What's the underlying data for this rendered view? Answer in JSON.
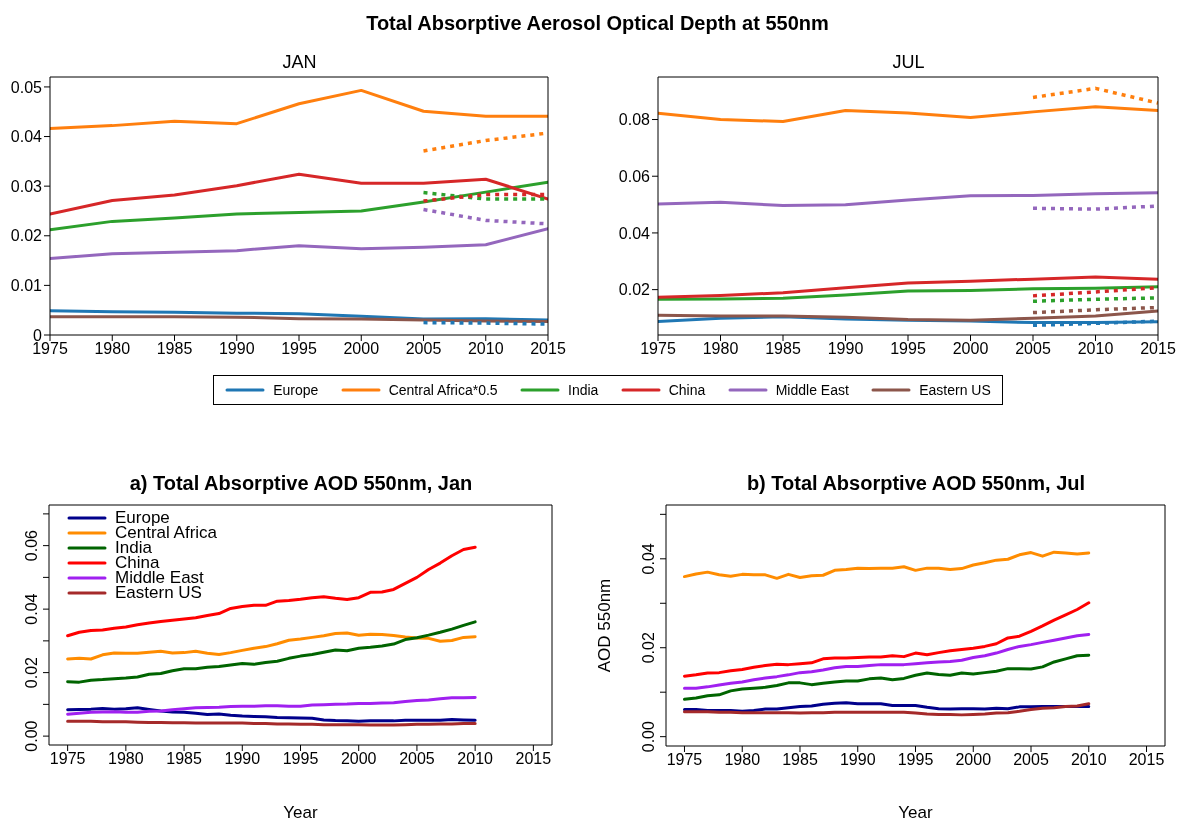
{
  "chart_data": [
    {
      "type": "line",
      "title": "Total Absorptive Aerosol Optical Depth at 550nm",
      "subtitle": "JAN",
      "x": [
        1975,
        1980,
        1985,
        1990,
        1995,
        2000,
        2005,
        2010,
        2015
      ],
      "xlim": [
        1975,
        2015
      ],
      "xticks": [
        1975,
        1980,
        1985,
        1990,
        1995,
        2000,
        2005,
        2010,
        2015
      ],
      "ylim": [
        0,
        0.052
      ],
      "yticks": [
        0,
        0.01,
        0.02,
        0.03,
        0.04,
        0.05
      ],
      "legend": "bottom",
      "series": [
        {
          "name": "Europe",
          "color": "#1f77b4",
          "values": [
            0.0049,
            0.0047,
            0.0046,
            0.0044,
            0.0043,
            0.0038,
            0.0032,
            0.0033,
            0.003
          ]
        },
        {
          "name": "Central Africa*0.5",
          "color": "#ff7f0e",
          "values": [
            0.0416,
            0.0422,
            0.0431,
            0.0426,
            0.0466,
            0.0493,
            0.0451,
            0.0441,
            0.0441
          ]
        },
        {
          "name": "India",
          "color": "#2ca02c",
          "values": [
            0.0212,
            0.0229,
            0.0236,
            0.0244,
            0.0247,
            0.025,
            0.0268,
            0.0288,
            0.0308
          ]
        },
        {
          "name": "China",
          "color": "#d62728",
          "values": [
            0.0244,
            0.0271,
            0.0282,
            0.0301,
            0.0324,
            0.0306,
            0.0306,
            0.0314,
            0.0274
          ]
        },
        {
          "name": "Middle East",
          "color": "#9467bd",
          "values": [
            0.0154,
            0.0164,
            0.0167,
            0.017,
            0.018,
            0.0174,
            0.0177,
            0.0182,
            0.0214
          ]
        },
        {
          "name": "Eastern US",
          "color": "#8c564b",
          "values": [
            0.0037,
            0.0037,
            0.0037,
            0.0036,
            0.0033,
            0.0032,
            0.003,
            0.0028,
            0.0027
          ]
        },
        {
          "color": "#ff7f0e",
          "line_style": "dotted",
          "x": [
            2005,
            2010,
            2015
          ],
          "values": [
            0.0371,
            0.0392,
            0.0407
          ]
        },
        {
          "color": "#2ca02c",
          "line_style": "dotted",
          "x": [
            2005,
            2010,
            2015
          ],
          "values": [
            0.0287,
            0.0274,
            0.0274
          ]
        },
        {
          "color": "#d62728",
          "line_style": "dotted",
          "x": [
            2005,
            2010,
            2015
          ],
          "values": [
            0.027,
            0.0283,
            0.0283
          ]
        },
        {
          "color": "#9467bd",
          "line_style": "dotted",
          "x": [
            2005,
            2010,
            2015
          ],
          "values": [
            0.0253,
            0.0231,
            0.0224
          ]
        },
        {
          "color": "#1f77b4",
          "line_style": "dotted",
          "x": [
            2005,
            2010,
            2015
          ],
          "values": [
            0.0025,
            0.0024,
            0.0022
          ]
        }
      ]
    },
    {
      "type": "line",
      "title": "JUL",
      "x": [
        1975,
        1980,
        1985,
        1990,
        1995,
        2000,
        2005,
        2010,
        2015
      ],
      "xlim": [
        1975,
        2015
      ],
      "xticks": [
        1975,
        1980,
        1985,
        1990,
        1995,
        2000,
        2005,
        2010,
        2015
      ],
      "ylim": [
        0.004,
        0.095
      ],
      "yticks": [
        0.02,
        0.04,
        0.06,
        0.08
      ],
      "series": [
        {
          "color": "#1f77b4",
          "values": [
            0.0088,
            0.0099,
            0.0104,
            0.0096,
            0.0092,
            0.0089,
            0.0084,
            0.0084,
            0.0087
          ]
        },
        {
          "color": "#ff7f0e",
          "values": [
            0.0822,
            0.08,
            0.0793,
            0.0832,
            0.0823,
            0.0807,
            0.0827,
            0.0845,
            0.0832
          ]
        },
        {
          "color": "#2ca02c",
          "values": [
            0.0166,
            0.0167,
            0.017,
            0.0181,
            0.0195,
            0.0197,
            0.0203,
            0.0205,
            0.021
          ]
        },
        {
          "color": "#d62728",
          "values": [
            0.0173,
            0.0179,
            0.0189,
            0.0207,
            0.0223,
            0.023,
            0.0237,
            0.0245,
            0.0237
          ]
        },
        {
          "color": "#9467bd",
          "values": [
            0.0502,
            0.0508,
            0.0497,
            0.0499,
            0.0516,
            0.0531,
            0.0532,
            0.0538,
            0.0542
          ]
        },
        {
          "color": "#8c564b",
          "values": [
            0.011,
            0.0107,
            0.0107,
            0.0103,
            0.0095,
            0.0092,
            0.0099,
            0.0107,
            0.0125
          ]
        },
        {
          "color": "#ff7f0e",
          "line_style": "dotted",
          "x": [
            2005,
            2010,
            2015
          ],
          "values": [
            0.0878,
            0.091,
            0.0858
          ]
        },
        {
          "color": "#9467bd",
          "line_style": "dotted",
          "x": [
            2005,
            2010,
            2015
          ],
          "values": [
            0.0487,
            0.0484,
            0.0495
          ]
        },
        {
          "color": "#d62728",
          "line_style": "dotted",
          "x": [
            2005,
            2010,
            2015
          ],
          "values": [
            0.0178,
            0.0192,
            0.0207
          ]
        },
        {
          "color": "#2ca02c",
          "line_style": "dotted",
          "x": [
            2005,
            2010,
            2015
          ],
          "values": [
            0.0159,
            0.0166,
            0.0171
          ]
        },
        {
          "color": "#8c564b",
          "line_style": "dotted",
          "x": [
            2005,
            2010,
            2015
          ],
          "values": [
            0.0119,
            0.0129,
            0.0137
          ]
        },
        {
          "color": "#1f77b4",
          "line_style": "dotted",
          "x": [
            2005,
            2010,
            2015
          ],
          "values": [
            0.0074,
            0.0081,
            0.0089
          ]
        }
      ]
    },
    {
      "type": "line",
      "title": "a) Total Absorptive AOD 550nm, Jan",
      "xlabel": "Year",
      "x": [
        1975,
        1976,
        1977,
        1978,
        1979,
        1980,
        1981,
        1982,
        1983,
        1984,
        1985,
        1986,
        1987,
        1988,
        1989,
        1990,
        1991,
        1992,
        1993,
        1994,
        1995,
        1996,
        1997,
        1998,
        1999,
        2000,
        2001,
        2002,
        2003,
        2004,
        2005,
        2006,
        2007,
        2008,
        2009,
        2010
      ],
      "xlim": [
        1973.4,
        2016.6
      ],
      "xticks": [
        1975,
        1980,
        1985,
        1990,
        1995,
        2000,
        2005,
        2010,
        2015
      ],
      "ylim": [
        -0.0028,
        0.0728
      ],
      "yticks": [
        {
          "value": 0,
          "label": "0.00"
        },
        {
          "value": 0.01,
          "label": null
        },
        {
          "value": 0.02,
          "label": "0.02"
        },
        {
          "value": 0.03,
          "label": null
        },
        {
          "value": 0.04,
          "label": "0.04"
        },
        {
          "value": 0.05,
          "label": null
        },
        {
          "value": 0.06,
          "label": "0.06"
        },
        {
          "value": 0.07,
          "label": null
        }
      ],
      "legend": "top left",
      "series": [
        {
          "name": "Europe",
          "color": "#00008b",
          "values": [
            0.0083,
            0.0084,
            0.0085,
            0.0087,
            0.0085,
            0.0086,
            0.0089,
            0.0084,
            0.0079,
            0.0076,
            0.0075,
            0.0072,
            0.0068,
            0.007,
            0.0066,
            0.0063,
            0.0062,
            0.0061,
            0.0059,
            0.0058,
            0.0057,
            0.0056,
            0.0051,
            0.0049,
            0.0048,
            0.0047,
            0.0048,
            0.0048,
            0.0048,
            0.005,
            0.005,
            0.005,
            0.005,
            0.0052,
            0.0051,
            0.005
          ]
        },
        {
          "name": "Central Africa",
          "color": "#ff8c00",
          "values": [
            0.0243,
            0.0245,
            0.0243,
            0.0256,
            0.0262,
            0.0261,
            0.0261,
            0.0264,
            0.0267,
            0.0262,
            0.0263,
            0.0267,
            0.0261,
            0.0257,
            0.0263,
            0.027,
            0.0277,
            0.0282,
            0.0291,
            0.0302,
            0.0306,
            0.0311,
            0.0316,
            0.0323,
            0.0325,
            0.0318,
            0.0321,
            0.032,
            0.0317,
            0.0312,
            0.0309,
            0.0308,
            0.0299,
            0.0301,
            0.0311,
            0.0313
          ]
        },
        {
          "name": "India",
          "color": "#006400",
          "values": [
            0.0171,
            0.017,
            0.0176,
            0.0178,
            0.0181,
            0.0183,
            0.0186,
            0.0195,
            0.0197,
            0.0206,
            0.0212,
            0.0212,
            0.0217,
            0.0219,
            0.0224,
            0.0229,
            0.0226,
            0.0232,
            0.0236,
            0.0245,
            0.0252,
            0.0257,
            0.0264,
            0.0271,
            0.0269,
            0.0277,
            0.028,
            0.0284,
            0.029,
            0.0304,
            0.031,
            0.0318,
            0.0327,
            0.0337,
            0.0349,
            0.036
          ]
        },
        {
          "name": "China",
          "color": "#ff0000",
          "values": [
            0.0316,
            0.0327,
            0.0333,
            0.0334,
            0.034,
            0.0344,
            0.0351,
            0.0356,
            0.0361,
            0.0365,
            0.0369,
            0.0373,
            0.038,
            0.0386,
            0.0402,
            0.0408,
            0.0412,
            0.0412,
            0.0425,
            0.0427,
            0.0431,
            0.0436,
            0.0439,
            0.0434,
            0.043,
            0.0436,
            0.0453,
            0.0454,
            0.0462,
            0.0481,
            0.05,
            0.0525,
            0.0545,
            0.0568,
            0.0588,
            0.0595
          ]
        },
        {
          "name": "Middle East",
          "color": "#a020f0",
          "values": [
            0.0069,
            0.0072,
            0.0075,
            0.0076,
            0.0077,
            0.0075,
            0.0075,
            0.0078,
            0.0079,
            0.0083,
            0.0086,
            0.0089,
            0.009,
            0.0091,
            0.0093,
            0.0094,
            0.0094,
            0.0096,
            0.0096,
            0.0094,
            0.0094,
            0.0098,
            0.0099,
            0.01,
            0.0101,
            0.0103,
            0.0103,
            0.0104,
            0.0105,
            0.0109,
            0.0112,
            0.0114,
            0.0118,
            0.0121,
            0.0121,
            0.0122
          ]
        },
        {
          "name": "Eastern US",
          "color": "#a52a2a",
          "values": [
            0.0047,
            0.0047,
            0.0047,
            0.0045,
            0.0045,
            0.0045,
            0.0044,
            0.0043,
            0.0043,
            0.0042,
            0.0042,
            0.0041,
            0.0041,
            0.0041,
            0.0041,
            0.0041,
            0.004,
            0.004,
            0.0038,
            0.0038,
            0.0037,
            0.0037,
            0.0036,
            0.0036,
            0.0036,
            0.0036,
            0.0035,
            0.0035,
            0.0035,
            0.0036,
            0.0037,
            0.0037,
            0.0038,
            0.0038,
            0.004,
            0.004
          ]
        }
      ]
    },
    {
      "type": "line",
      "title": "b) Total Absorptive AOD 550nm, Jul",
      "xlabel": "Year",
      "ylabel": "AOD 550nm",
      "x": [
        1975,
        1976,
        1977,
        1978,
        1979,
        1980,
        1981,
        1982,
        1983,
        1984,
        1985,
        1986,
        1987,
        1988,
        1989,
        1990,
        1991,
        1992,
        1993,
        1994,
        1995,
        1996,
        1997,
        1998,
        1999,
        2000,
        2001,
        2002,
        2003,
        2004,
        2005,
        2006,
        2007,
        2008,
        2009,
        2010
      ],
      "xlim": [
        1973.4,
        2016.6
      ],
      "xticks": [
        1975,
        1980,
        1985,
        1990,
        1995,
        2000,
        2005,
        2010,
        2015
      ],
      "ylim": [
        -0.0021,
        0.0521
      ],
      "yticks": [
        {
          "value": 0,
          "label": "0.00"
        },
        {
          "value": 0.01,
          "label": null
        },
        {
          "value": 0.02,
          "label": "0.02"
        },
        {
          "value": 0.03,
          "label": null
        },
        {
          "value": 0.04,
          "label": "0.04"
        },
        {
          "value": 0.05,
          "label": null
        }
      ],
      "series": [
        {
          "color": "#00008b",
          "values": [
            0.0061,
            0.0061,
            0.0059,
            0.0059,
            0.0059,
            0.0057,
            0.0059,
            0.0062,
            0.0062,
            0.0065,
            0.0068,
            0.0069,
            0.0073,
            0.0075,
            0.0076,
            0.0074,
            0.0074,
            0.0074,
            0.007,
            0.007,
            0.007,
            0.0066,
            0.0063,
            0.0062,
            0.0063,
            0.0063,
            0.0062,
            0.0064,
            0.0063,
            0.0067,
            0.0067,
            0.0068,
            0.0068,
            0.0068,
            0.0068,
            0.0068
          ]
        },
        {
          "color": "#ff8c00",
          "values": [
            0.036,
            0.0366,
            0.037,
            0.0364,
            0.0361,
            0.0365,
            0.0364,
            0.0364,
            0.0356,
            0.0365,
            0.0358,
            0.0362,
            0.0363,
            0.0374,
            0.0376,
            0.0379,
            0.0378,
            0.0379,
            0.0379,
            0.0382,
            0.0374,
            0.0379,
            0.0379,
            0.0376,
            0.0378,
            0.0386,
            0.0391,
            0.0397,
            0.0399,
            0.0409,
            0.0414,
            0.0406,
            0.0415,
            0.0413,
            0.0411,
            0.0413
          ]
        },
        {
          "color": "#006400",
          "values": [
            0.0084,
            0.0087,
            0.0092,
            0.0094,
            0.0103,
            0.0107,
            0.0109,
            0.0111,
            0.0115,
            0.0121,
            0.0121,
            0.0117,
            0.012,
            0.0123,
            0.0125,
            0.0125,
            0.013,
            0.0132,
            0.0128,
            0.0131,
            0.0138,
            0.0143,
            0.014,
            0.0138,
            0.0143,
            0.0141,
            0.0144,
            0.0147,
            0.0153,
            0.0153,
            0.0152,
            0.0157,
            0.0168,
            0.0175,
            0.0182,
            0.0183
          ]
        },
        {
          "color": "#ff0000",
          "values": [
            0.0136,
            0.0139,
            0.0143,
            0.0144,
            0.0148,
            0.0151,
            0.0156,
            0.016,
            0.0163,
            0.0162,
            0.0164,
            0.0166,
            0.0175,
            0.0177,
            0.0177,
            0.0178,
            0.0179,
            0.0179,
            0.0182,
            0.018,
            0.0188,
            0.0184,
            0.0189,
            0.0193,
            0.0196,
            0.0199,
            0.0203,
            0.0209,
            0.0222,
            0.0226,
            0.0237,
            0.0249,
            0.0262,
            0.0274,
            0.0286,
            0.0301
          ]
        },
        {
          "color": "#a020f0",
          "values": [
            0.0109,
            0.0109,
            0.0112,
            0.0116,
            0.012,
            0.0123,
            0.0128,
            0.0132,
            0.0135,
            0.0139,
            0.0144,
            0.0146,
            0.015,
            0.0155,
            0.0158,
            0.0158,
            0.016,
            0.0162,
            0.0162,
            0.0162,
            0.0164,
            0.0166,
            0.0168,
            0.0169,
            0.0172,
            0.0178,
            0.0182,
            0.0188,
            0.0196,
            0.0203,
            0.0207,
            0.0212,
            0.0217,
            0.0222,
            0.0227,
            0.023
          ]
        },
        {
          "color": "#a52a2a",
          "values": [
            0.0056,
            0.0056,
            0.0056,
            0.0055,
            0.0055,
            0.0054,
            0.0054,
            0.0054,
            0.0054,
            0.0054,
            0.0053,
            0.0054,
            0.0054,
            0.0055,
            0.0055,
            0.0055,
            0.0055,
            0.0055,
            0.0055,
            0.0055,
            0.0053,
            0.0051,
            0.005,
            0.005,
            0.0049,
            0.005,
            0.0051,
            0.0053,
            0.0054,
            0.0057,
            0.0061,
            0.0064,
            0.0065,
            0.0068,
            0.0069,
            0.0074
          ]
        }
      ]
    }
  ]
}
